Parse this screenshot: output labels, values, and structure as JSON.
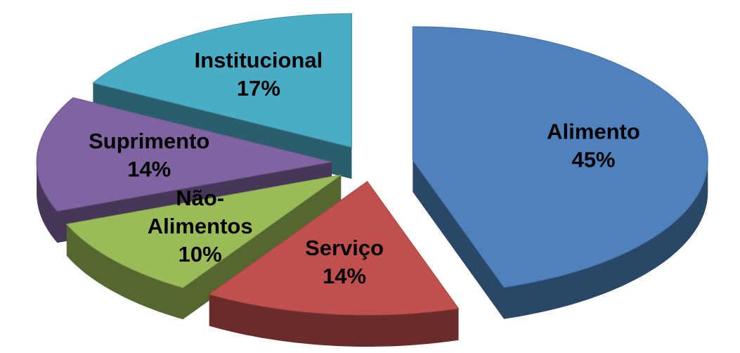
{
  "chart_data": {
    "type": "pie",
    "categories": [
      "Alimento",
      "Serviço",
      "Não-Alimentos",
      "Suprimento",
      "Institucional"
    ],
    "values": [
      45,
      14,
      10,
      14,
      17
    ],
    "value_labels": [
      "45%",
      "14%",
      "10%",
      "14%",
      "17%"
    ],
    "colors": [
      "#4f81bd",
      "#c0504d",
      "#9bbb59",
      "#8064a2",
      "#4bacc6"
    ]
  }
}
